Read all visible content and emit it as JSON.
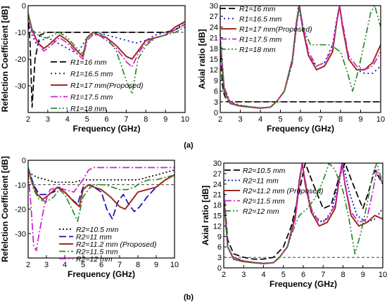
{
  "figure_labels": [
    "(a)",
    "(b)"
  ],
  "chart_data": [
    {
      "type": "line",
      "xlabel": "Frequency (GHz)",
      "ylabel": "Refelction Coefficient [dB]",
      "xlim": [
        2,
        10
      ],
      "ylim": [
        -40,
        0
      ],
      "xticks": [
        2,
        3,
        4,
        5,
        6,
        7,
        8,
        9,
        10
      ],
      "yticks": [
        0,
        -10,
        -20,
        -30
      ],
      "legend_position": "bottom-right",
      "series": [
        {
          "name": "R1=16 mm",
          "color": "#000000",
          "dash": "9,4",
          "x": [
            2.0,
            2.1,
            2.2,
            2.35,
            2.6,
            3.0,
            4,
            5,
            6,
            7,
            8,
            9,
            9.5,
            10
          ],
          "y": [
            -3,
            -14,
            -38,
            -20,
            -11,
            -10,
            -10,
            -10,
            -10,
            -10,
            -10,
            -10,
            -9,
            -7
          ]
        },
        {
          "name": "R1=16.5 mm",
          "color": "#1010b0",
          "dash": "2,4",
          "x": [
            2.0,
            2.2,
            2.4,
            2.7,
            3.0,
            3.5,
            4,
            4.5,
            5,
            5.5,
            6,
            6.5,
            7,
            7.5,
            8,
            8.5,
            9,
            9.5,
            10
          ],
          "y": [
            -3,
            -11,
            -14,
            -13,
            -12,
            -14,
            -16,
            -18,
            -12,
            -10,
            -11,
            -12,
            -13,
            -14,
            -13,
            -11,
            -10,
            -9,
            -6
          ]
        },
        {
          "name": "R1=17 mm(Proposed)",
          "color": "#a0291f",
          "dash": "",
          "x": [
            2.0,
            2.2,
            2.5,
            2.8,
            3.0,
            3.3,
            3.6,
            4.0,
            4.5,
            4.8,
            5.0,
            5.3,
            5.6,
            6.0,
            6.5,
            7.0,
            7.3,
            7.6,
            8.0,
            8.5,
            9.0,
            9.5,
            10
          ],
          "y": [
            -3,
            -9,
            -14,
            -16,
            -15,
            -13,
            -11,
            -13,
            -17,
            -19,
            -12,
            -10,
            -11,
            -12,
            -15,
            -19,
            -20,
            -17,
            -13,
            -12,
            -11,
            -8,
            -6
          ]
        },
        {
          "name": "R1=17.5 mm",
          "color": "#cc22cc",
          "dash": "10,3,2,3",
          "x": [
            2.0,
            2.2,
            2.5,
            2.8,
            3.0,
            3.3,
            3.6,
            4.0,
            4.5,
            4.8,
            5.0,
            5.3,
            5.6,
            6.0,
            6.5,
            7.0,
            7.3,
            7.6,
            8.0,
            8.5,
            9.0,
            9.5,
            10
          ],
          "y": [
            -3,
            -10,
            -14,
            -17,
            -16,
            -14,
            -12,
            -14,
            -18,
            -20,
            -13,
            -11,
            -11,
            -13,
            -16,
            -21,
            -23,
            -18,
            -14,
            -12,
            -11,
            -9,
            -7
          ]
        },
        {
          "name": "R1=18 mm",
          "color": "#2a8a2a",
          "dash": "9,3,2,3,2,3",
          "x": [
            2.0,
            2.2,
            2.5,
            2.8,
            3.0,
            3.3,
            3.6,
            4.0,
            4.5,
            4.8,
            5.0,
            5.3,
            5.6,
            6.0,
            6.5,
            7.0,
            7.3,
            7.6,
            8.0,
            8.5,
            9.0,
            9.5,
            10
          ],
          "y": [
            -3,
            -9,
            -11,
            -12,
            -12,
            -11,
            -10,
            -12,
            -16,
            -18,
            -12,
            -10,
            -10,
            -12,
            -17,
            -28,
            -33,
            -20,
            -15,
            -12,
            -11,
            -10,
            -8
          ]
        }
      ]
    },
    {
      "type": "line",
      "xlabel": "Frequency (GHz)",
      "ylabel": "Axial ratio [dB]",
      "xlim": [
        2,
        10
      ],
      "ylim": [
        0,
        30
      ],
      "xticks": [
        2,
        3,
        4,
        5,
        6,
        7,
        8,
        9,
        10
      ],
      "yticks": [
        0,
        3,
        6,
        9,
        12,
        15,
        18,
        21,
        24,
        27,
        30
      ],
      "legend_position": "top-center",
      "series": [
        {
          "name": "R1=16 mm",
          "color": "#000000",
          "dash": "9,4",
          "x": [
            2.0,
            2.1,
            2.2,
            2.35,
            10
          ],
          "y": [
            21,
            8,
            5,
            3,
            3
          ]
        },
        {
          "name": "R1=16.5 mm",
          "color": "#1010b0",
          "dash": "2,4",
          "x": [
            2.0,
            2.2,
            2.5,
            3.0,
            3.5,
            4.0,
            4.5,
            4.8,
            5.2,
            5.6,
            5.8,
            5.9,
            6.1,
            6.4,
            6.8,
            7.2,
            7.6,
            7.8,
            7.95,
            8.1,
            8.4,
            8.8,
            9.2,
            9.6,
            10
          ],
          "y": [
            22,
            6,
            3,
            2,
            1.5,
            1.2,
            1.5,
            3,
            6,
            14,
            24,
            30,
            24,
            16,
            13,
            14,
            19,
            26,
            30,
            24,
            15,
            12,
            11,
            11,
            13
          ]
        },
        {
          "name": "R1=17 mm(Proposed)",
          "color": "#a0291f",
          "dash": "",
          "x": [
            2.0,
            2.2,
            2.5,
            3.0,
            3.5,
            4.0,
            4.5,
            4.8,
            5.2,
            5.6,
            5.8,
            5.95,
            6.1,
            6.4,
            6.8,
            7.2,
            7.6,
            7.8,
            7.95,
            8.1,
            8.4,
            8.8,
            9.2,
            9.6,
            10
          ],
          "y": [
            20,
            6,
            2.5,
            1.8,
            1.5,
            1.2,
            1.5,
            3,
            6,
            15,
            25,
            30,
            24,
            16,
            12,
            13,
            17,
            25,
            30,
            24,
            15,
            12,
            12,
            14,
            19
          ]
        },
        {
          "name": "R1=17.5 mm",
          "color": "#cc22cc",
          "dash": "10,3,2,3",
          "x": [
            2.0,
            2.2,
            2.5,
            3.0,
            3.5,
            4.0,
            4.5,
            4.8,
            5.2,
            5.6,
            5.8,
            5.95,
            6.1,
            6.4,
            6.8,
            7.2,
            7.6,
            7.8,
            7.95,
            8.1,
            8.4,
            8.8,
            9.2,
            9.6,
            10
          ],
          "y": [
            21,
            7,
            3,
            2,
            1.6,
            1.3,
            1.5,
            3,
            6,
            14,
            24,
            30,
            25,
            17,
            13,
            14,
            18,
            25,
            30,
            25,
            16,
            13,
            12,
            13,
            17
          ]
        },
        {
          "name": "R1=18 mm",
          "color": "#2a8a2a",
          "dash": "9,3,2,3,2,3",
          "x": [
            2.0,
            2.2,
            2.5,
            3.0,
            3.5,
            4.0,
            4.5,
            4.8,
            5.2,
            5.6,
            5.8,
            5.95,
            6.1,
            6.5,
            7.0,
            7.5,
            8.0,
            8.3,
            8.6,
            8.9,
            9.2,
            9.5,
            9.7,
            10
          ],
          "y": [
            20,
            6,
            2.5,
            2,
            1.6,
            1.3,
            1.5,
            3,
            6,
            15,
            26,
            30,
            24,
            19,
            19,
            19,
            17,
            12,
            6,
            12,
            20,
            28,
            30,
            24
          ]
        }
      ]
    },
    {
      "type": "line",
      "xlabel": "Frequency (GHz)",
      "ylabel": "Refelction Coefficient [dB]",
      "xlim": [
        2,
        10
      ],
      "ylim": [
        -40,
        0
      ],
      "xticks": [
        2,
        3,
        4,
        5,
        6,
        7,
        8,
        9,
        10
      ],
      "yticks": [
        0,
        -10,
        -20,
        -30
      ],
      "legend_position": "bottom-center",
      "series": [
        {
          "name": "R2=10.5 mm",
          "color": "#000000",
          "dash": "2,3",
          "x": [
            2,
            2.5,
            3,
            3.5,
            4,
            4.5,
            5,
            5.5,
            6,
            6.5,
            7,
            7.5,
            8,
            8.5,
            9,
            9.5,
            10
          ],
          "y": [
            -5,
            -7,
            -8,
            -9,
            -9,
            -9,
            -8,
            -8,
            -8,
            -8,
            -8,
            -8,
            -8,
            -7,
            -6,
            -5,
            -4
          ]
        },
        {
          "name": "R2=11 mm",
          "color": "#1010b0",
          "dash": "10,4",
          "x": [
            2.0,
            2.3,
            2.6,
            3.0,
            3.4,
            3.7,
            4.0,
            4.4,
            4.7,
            5.0,
            5.4,
            5.8,
            6.0,
            6.3,
            6.6,
            6.9,
            7.2,
            7.5,
            7.8,
            8.1,
            8.5,
            9.0,
            9.5,
            10
          ],
          "y": [
            -3,
            -10,
            -14,
            -14,
            -13,
            -11,
            -13,
            -16,
            -18,
            -11,
            -10,
            -12,
            -13,
            -20,
            -24,
            -17,
            -14,
            -18,
            -21,
            -19,
            -15,
            -11,
            -8,
            -6
          ]
        },
        {
          "name": "R2=11.2 mm (Proposed)",
          "color": "#a0291f",
          "dash": "",
          "x": [
            2.0,
            2.2,
            2.5,
            2.8,
            3.0,
            3.3,
            3.6,
            4.0,
            4.5,
            4.8,
            5.0,
            5.3,
            5.6,
            6.0,
            6.5,
            7.0,
            7.3,
            7.6,
            8.0,
            8.5,
            9.0,
            9.5,
            10
          ],
          "y": [
            -3,
            -9,
            -14,
            -16,
            -15,
            -13,
            -11,
            -13,
            -17,
            -19,
            -12,
            -10,
            -11,
            -12,
            -15,
            -19,
            -20,
            -17,
            -13,
            -12,
            -11,
            -8,
            -6
          ]
        },
        {
          "name": "R2=11.5 mm",
          "color": "#2a8a2a",
          "dash": "9,3,2,3",
          "x": [
            2.0,
            2.3,
            2.6,
            3.0,
            3.4,
            3.7,
            4.0,
            4.4,
            4.7,
            5.0,
            5.4,
            5.8,
            6.2,
            6.6,
            7.0,
            7.4,
            7.8,
            8.2,
            8.6,
            9.0,
            9.5,
            10
          ],
          "y": [
            -3,
            -12,
            -16,
            -17,
            -15,
            -12,
            -14,
            -20,
            -25,
            -15,
            -11,
            -10,
            -10,
            -11,
            -12,
            -12,
            -11,
            -9,
            -8,
            -8,
            -7,
            -6
          ]
        },
        {
          "name": "R2=12 mm",
          "color": "#cc22cc",
          "dash": "10,3,2,3",
          "x": [
            2.0,
            2.15,
            2.3,
            2.45,
            2.6,
            2.9,
            3.2,
            3.6,
            4.0,
            4.5,
            5.0,
            5.3,
            5.6,
            6.0,
            6.5,
            7.0,
            7.5,
            8.0,
            8.5,
            9.0,
            9.5,
            10
          ],
          "y": [
            -5,
            -18,
            -35,
            -37,
            -30,
            -18,
            -12,
            -11,
            -12,
            -13,
            -8,
            -4,
            -3,
            -3,
            -3,
            -3,
            -3,
            -3,
            -3,
            -3,
            -3,
            -3
          ]
        }
      ]
    },
    {
      "type": "line",
      "xlabel": "Frequency (GHz)",
      "ylabel": "Axial ratio [dB]",
      "xlim": [
        2,
        10
      ],
      "ylim": [
        0,
        30
      ],
      "xticks": [
        2,
        3,
        4,
        5,
        6,
        7,
        8,
        9,
        10
      ],
      "yticks": [
        0,
        3,
        6,
        9,
        12,
        15,
        18,
        21,
        24,
        27,
        30
      ],
      "legend_position": "top-right",
      "series": [
        {
          "name": "R2=10.5 mm",
          "color": "#000000",
          "dash": "9,4",
          "x": [
            2.0,
            2.2,
            2.5,
            3.0,
            3.5,
            4.0,
            4.5,
            5.0,
            5.4,
            5.8,
            6.1,
            6.5,
            7.0,
            7.4,
            7.8,
            8.1,
            8.5,
            9.0,
            9.3,
            9.6,
            10
          ],
          "y": [
            22,
            8,
            4,
            3,
            2.5,
            2.5,
            3,
            6,
            12,
            22,
            30,
            24,
            17,
            18,
            26,
            30,
            24,
            17,
            22,
            28,
            24
          ]
        },
        {
          "name": "R2=11 mm",
          "color": "#1010b0",
          "dash": "2,3",
          "x": [
            2.0,
            2.2,
            2.5,
            3.0,
            3.5,
            4.0,
            4.5,
            4.8,
            5.2,
            5.6,
            5.8,
            5.95,
            6.1,
            6.5,
            7.0,
            7.4,
            7.8,
            8.0,
            8.3,
            8.7,
            9.2,
            9.6,
            10
          ],
          "y": [
            22,
            6,
            3,
            2,
            1.5,
            1.2,
            1.5,
            3,
            6,
            14,
            24,
            30,
            24,
            15,
            13,
            16,
            25,
            30,
            22,
            15,
            13,
            14,
            17
          ]
        },
        {
          "name": "R2=11.2 mm (Proposed)",
          "color": "#a0291f",
          "dash": "",
          "x": [
            2.0,
            2.2,
            2.5,
            3.0,
            3.5,
            4.0,
            4.5,
            4.8,
            5.2,
            5.6,
            5.8,
            5.95,
            6.1,
            6.4,
            6.8,
            7.2,
            7.6,
            7.8,
            7.95,
            8.1,
            8.4,
            8.8,
            9.2,
            9.6,
            10
          ],
          "y": [
            20,
            6,
            2.5,
            1.8,
            1.5,
            1.2,
            1.5,
            3,
            6,
            15,
            25,
            30,
            24,
            16,
            12,
            13,
            17,
            25,
            30,
            24,
            15,
            12,
            13,
            15,
            14
          ]
        },
        {
          "name": "R2=11.5 mm",
          "color": "#cc22cc",
          "dash": "10,3,2,3",
          "x": [
            2.0,
            2.2,
            2.5,
            3.0,
            3.5,
            4.0,
            4.5,
            4.8,
            5.2,
            5.6,
            5.8,
            5.95,
            6.1,
            6.4,
            6.8,
            7.2,
            7.6,
            7.8,
            7.95,
            8.1,
            8.4,
            8.8,
            9.2,
            9.5,
            9.7,
            10
          ],
          "y": [
            21,
            6,
            3,
            2,
            1.6,
            1.3,
            1.5,
            3,
            6,
            14,
            24,
            30,
            25,
            17,
            13,
            14,
            18,
            25,
            30,
            24,
            16,
            13,
            14,
            22,
            28,
            24
          ]
        },
        {
          "name": "R2=12 mm",
          "color": "#2a8a2a",
          "dash": "9,3,2,3,2,3",
          "x": [
            2.0,
            2.2,
            2.5,
            3.0,
            3.5,
            4.0,
            4.5,
            4.8,
            5.2,
            5.5,
            5.8,
            6.2,
            6.6,
            7.0,
            7.3,
            7.6,
            8.0,
            8.3,
            8.6,
            8.9,
            9.2,
            9.5,
            9.7,
            10
          ],
          "y": [
            20,
            6,
            2.5,
            2,
            1.6,
            1.3,
            1.5,
            3,
            6,
            11,
            15,
            17,
            20,
            25,
            30,
            28,
            22,
            14,
            4,
            10,
            18,
            27,
            30,
            24
          ]
        }
      ]
    }
  ]
}
